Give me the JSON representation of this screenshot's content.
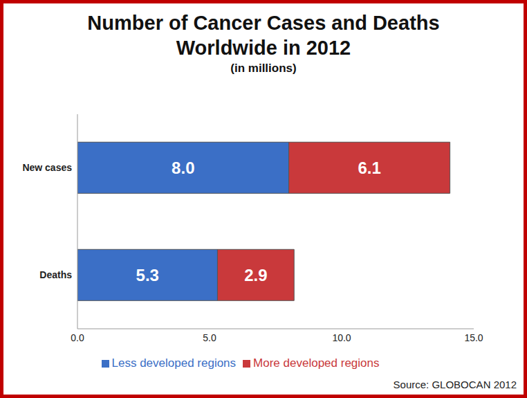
{
  "chart_data": {
    "type": "bar",
    "title": "Number of Cancer Cases and Deaths Worldwide in 2012",
    "subtitle": "(in millions)",
    "annotation": "Source: GLOBOCAN 2012",
    "orientation": "horizontal",
    "stacked": true,
    "data_labels": true,
    "grid": false,
    "legend": "bottom",
    "categories": [
      "New cases",
      "Deaths"
    ],
    "series": [
      {
        "name": "Less developed regions",
        "color": "#3b6fc6",
        "values": [
          8.0,
          5.3
        ],
        "value_labels": [
          "8.0",
          "5.3"
        ]
      },
      {
        "name": "More developed regions",
        "color": "#c9393b",
        "values": [
          6.1,
          2.9
        ],
        "value_labels": [
          "6.1",
          "2.9"
        ]
      }
    ],
    "xlim": [
      0,
      15
    ],
    "xticks": [
      {
        "value": 0,
        "label": "0.0"
      },
      {
        "value": 5,
        "label": "5.0"
      },
      {
        "value": 10,
        "label": "10.0"
      },
      {
        "value": 15,
        "label": "15.0"
      }
    ]
  }
}
